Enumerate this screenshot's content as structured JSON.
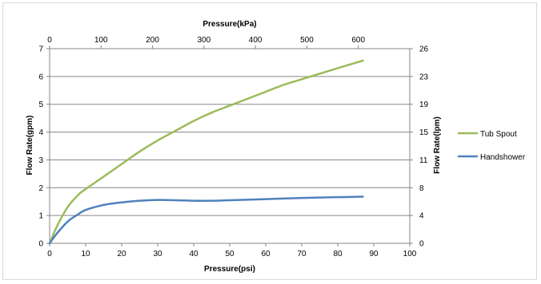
{
  "chart_data": {
    "type": "line",
    "title": "",
    "xlabel": "Pressure(psi)",
    "x2label": "Pressure(kPa)",
    "ylabel": "Flow Rate(gpm)",
    "y2label": "Flow Rate(lpm)",
    "xlim": [
      0,
      100
    ],
    "x2lim": [
      0,
      700
    ],
    "ylim": [
      0,
      7
    ],
    "y2lim": [
      0,
      26
    ],
    "x_ticks": [
      "0",
      "10",
      "20",
      "30",
      "40",
      "50",
      "60",
      "70",
      "80",
      "90",
      "100"
    ],
    "x2_ticks": [
      "0",
      "100",
      "200",
      "300",
      "400",
      "500",
      "600"
    ],
    "y_ticks": [
      "0",
      "1",
      "2",
      "3",
      "4",
      "5",
      "6",
      "7"
    ],
    "y2_ticks": [
      "0",
      "4",
      "8",
      "11",
      "15",
      "19",
      "23",
      "26"
    ],
    "grid": "horizontal",
    "legend_position": "right",
    "series": [
      {
        "name": "Tub Spout",
        "color": "#9bbb59",
        "x": [
          0,
          2,
          5,
          8,
          10,
          15,
          20,
          25,
          30,
          35,
          40,
          45,
          50,
          55,
          60,
          65,
          70,
          75,
          80,
          87
        ],
        "y": [
          0,
          0.6,
          1.3,
          1.75,
          1.95,
          2.4,
          2.85,
          3.3,
          3.7,
          4.05,
          4.4,
          4.7,
          4.95,
          5.2,
          5.45,
          5.7,
          5.9,
          6.1,
          6.3,
          6.57
        ]
      },
      {
        "name": "Handshower",
        "color": "#4f81bd",
        "x": [
          0,
          2,
          5,
          8,
          10,
          15,
          20,
          25,
          30,
          35,
          40,
          45,
          50,
          60,
          70,
          80,
          87
        ],
        "y": [
          0,
          0.35,
          0.78,
          1.05,
          1.2,
          1.38,
          1.47,
          1.53,
          1.56,
          1.55,
          1.53,
          1.53,
          1.55,
          1.59,
          1.63,
          1.66,
          1.68
        ]
      }
    ]
  }
}
